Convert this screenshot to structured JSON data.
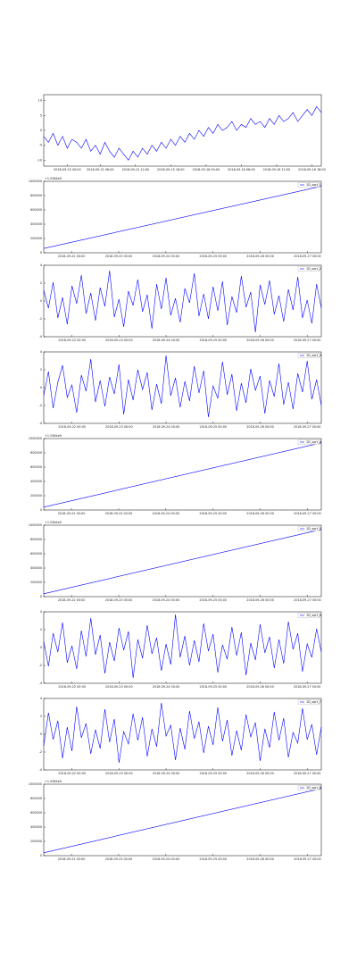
{
  "chart_data": [
    {
      "type": "line",
      "legend": false,
      "ylim": [
        -12,
        12
      ],
      "yticks": [
        -10,
        -5,
        0,
        5,
        10
      ],
      "xlim": [
        0,
        59
      ],
      "xticks": [
        {
          "value": 5,
          "label": "2018-09-15 00:00"
        },
        {
          "value": 12,
          "label": "2018-09-15 06:00"
        },
        {
          "value": 19.5,
          "label": "2018-09-15 12:00"
        },
        {
          "value": 27,
          "label": "2018-09-15 18:00"
        },
        {
          "value": 34.5,
          "label": "2018-09-16 00:00"
        },
        {
          "value": 42,
          "label": "2018-09-16 06:00"
        },
        {
          "value": 49.5,
          "label": "2018-09-16 12:00"
        },
        {
          "value": 57,
          "label": "2018-09-16 18:00"
        }
      ],
      "series": [
        {
          "color": "#0000ff",
          "values": [
            -2,
            -4,
            -1,
            -5,
            -2,
            -6,
            -3,
            -4,
            -6,
            -3,
            -7,
            -5,
            -8,
            -4,
            -7,
            -9,
            -6,
            -8,
            -10,
            -7,
            -9,
            -6,
            -8,
            -5,
            -7,
            -4,
            -6,
            -3,
            -5,
            -2,
            -4,
            -1,
            -3,
            0,
            -2,
            1,
            -1,
            2,
            0,
            1,
            3,
            0,
            2,
            1,
            4,
            2,
            3,
            1,
            4,
            2,
            5,
            3,
            4,
            6,
            3,
            5,
            7,
            5,
            8,
            6
          ]
        }
      ]
    },
    {
      "type": "line",
      "legend": true,
      "annotation": "+1.5364e9",
      "ylim": [
        0,
        1000000
      ],
      "yticks": [
        0,
        200000,
        400000,
        600000,
        800000,
        1000000
      ],
      "xlim": [
        0,
        1
      ],
      "xticks": [
        {
          "value": 0.1,
          "label": "2018-09-22 00:00"
        },
        {
          "value": 0.27,
          "label": "2018-09-23 00:00"
        },
        {
          "value": 0.44,
          "label": "2018-09-24 00:00"
        },
        {
          "value": 0.61,
          "label": "2018-09-25 00:00"
        },
        {
          "value": 0.78,
          "label": "2018-09-26 00:00"
        },
        {
          "value": 0.95,
          "label": "2018-09-27 00:00"
        }
      ],
      "series": [
        {
          "name": "1D_sqrt_1",
          "color": "#0000ff",
          "values": [
            60000,
            930000
          ]
        }
      ]
    },
    {
      "type": "line",
      "legend": true,
      "ylim": [
        -4,
        4
      ],
      "yticks": [
        -4,
        -2,
        0,
        2,
        4
      ],
      "xlim": [
        0,
        59
      ],
      "xticks": [
        {
          "value": 6,
          "label": "2018-09-22 00:00"
        },
        {
          "value": 16,
          "label": "2018-09-23 00:00"
        },
        {
          "value": 26,
          "label": "2018-09-24 00:00"
        },
        {
          "value": 36,
          "label": "2018-09-25 00:00"
        },
        {
          "value": 46,
          "label": "2018-09-26 00:00"
        },
        {
          "value": 56,
          "label": "2018-09-27 00:00"
        }
      ],
      "series": [
        {
          "name": "1D_sqrt_2",
          "color": "#0000ff",
          "values": [
            1.2,
            -0.8,
            2.1,
            -1.9,
            0.4,
            -2.6,
            1.7,
            -0.3,
            2.9,
            -1.4,
            0.9,
            -2.2,
            1.5,
            -0.6,
            3.4,
            -1.8,
            0.2,
            -2.9,
            1.1,
            -0.5,
            2.4,
            -1.2,
            0.7,
            -3.1,
            1.9,
            -0.9,
            2.6,
            -1.6,
            0.3,
            -2.4,
            1.4,
            -0.2,
            3.1,
            -1.7,
            0.8,
            -2.0,
            1.6,
            -1.1,
            2.2,
            -2.7,
            0.5,
            -1.3,
            2.8,
            -0.7,
            1.0,
            -3.5,
            1.8,
            -0.4,
            2.3,
            -1.5,
            0.6,
            -2.3,
            1.3,
            -1.0,
            2.7,
            -1.9,
            0.1,
            -2.5,
            1.9,
            -0.8
          ]
        }
      ]
    },
    {
      "type": "line",
      "legend": true,
      "ylim": [
        -4,
        4
      ],
      "yticks": [
        -4,
        -2,
        0,
        2,
        4
      ],
      "xlim": [
        0,
        59
      ],
      "xticks": [
        {
          "value": 6,
          "label": "2018-09-22 00:00"
        },
        {
          "value": 16,
          "label": "2018-09-23 00:00"
        },
        {
          "value": 26,
          "label": "2018-09-24 00:00"
        },
        {
          "value": 36,
          "label": "2018-09-25 00:00"
        },
        {
          "value": 46,
          "label": "2018-09-26 00:00"
        },
        {
          "value": 56,
          "label": "2018-09-27 00:00"
        }
      ],
      "series": [
        {
          "name": "1D_sqrt_3",
          "color": "#0000ff",
          "values": [
            -0.9,
            1.8,
            -2.3,
            0.6,
            2.5,
            -1.1,
            0.3,
            -2.8,
            1.4,
            -0.4,
            3.2,
            -1.6,
            0.8,
            -2.1,
            1.2,
            -0.7,
            2.6,
            -3.0,
            0.9,
            -1.4,
            2.0,
            -0.2,
            1.7,
            -2.5,
            0.4,
            -1.8,
            3.6,
            -0.9,
            1.1,
            -2.2,
            0.7,
            -1.5,
            2.4,
            -0.6,
            1.9,
            -3.3,
            0.2,
            -1.2,
            2.9,
            -0.8,
            1.5,
            -2.6,
            0.5,
            -1.7,
            2.1,
            -0.3,
            1.3,
            -2.9,
            0.8,
            -1.0,
            2.7,
            -1.9,
            0.6,
            -2.4,
            1.6,
            -0.5,
            3.0,
            -1.3,
            0.9,
            -2.0
          ]
        }
      ]
    },
    {
      "type": "line",
      "legend": true,
      "annotation": "+1.5364e9",
      "ylim": [
        0,
        1000000
      ],
      "yticks": [
        0,
        200000,
        400000,
        600000,
        800000,
        1000000
      ],
      "xlim": [
        0,
        1
      ],
      "xticks": [
        {
          "value": 0.1,
          "label": "2018-09-22 00:00"
        },
        {
          "value": 0.27,
          "label": "2018-09-23 00:00"
        },
        {
          "value": 0.44,
          "label": "2018-09-24 00:00"
        },
        {
          "value": 0.61,
          "label": "2018-09-25 00:00"
        },
        {
          "value": 0.78,
          "label": "2018-09-26 00:00"
        },
        {
          "value": 0.95,
          "label": "2018-09-27 00:00"
        }
      ],
      "series": [
        {
          "name": "1D_sqrt_4",
          "color": "#0000ff",
          "values": [
            40000,
            940000
          ]
        }
      ]
    },
    {
      "type": "line",
      "legend": true,
      "annotation": "+1.5364e9",
      "ylim": [
        0,
        1000000
      ],
      "yticks": [
        0,
        200000,
        400000,
        600000,
        800000,
        1000000
      ],
      "xlim": [
        0,
        1
      ],
      "xticks": [
        {
          "value": 0.1,
          "label": "2018-09-22 00:00"
        },
        {
          "value": 0.27,
          "label": "2018-09-23 00:00"
        },
        {
          "value": 0.44,
          "label": "2018-09-24 00:00"
        },
        {
          "value": 0.61,
          "label": "2018-09-25 00:00"
        },
        {
          "value": 0.78,
          "label": "2018-09-26 00:00"
        },
        {
          "value": 0.95,
          "label": "2018-09-27 00:00"
        }
      ],
      "series": [
        {
          "name": "1D_sqrt_5",
          "color": "#0000ff",
          "values": [
            40000,
            940000
          ]
        }
      ]
    },
    {
      "type": "line",
      "legend": true,
      "ylim": [
        -4,
        4
      ],
      "yticks": [
        -4,
        -2,
        0,
        2,
        4
      ],
      "xlim": [
        0,
        59
      ],
      "xticks": [
        {
          "value": 6,
          "label": "2018-09-22 00:00"
        },
        {
          "value": 16,
          "label": "2018-09-23 00:00"
        },
        {
          "value": 26,
          "label": "2018-09-24 00:00"
        },
        {
          "value": 36,
          "label": "2018-09-25 00:00"
        },
        {
          "value": 46,
          "label": "2018-09-26 00:00"
        },
        {
          "value": 56,
          "label": "2018-09-27 00:00"
        }
      ],
      "series": [
        {
          "name": "1D_sqrt_6",
          "color": "#0000ff",
          "values": [
            0.7,
            -2.1,
            1.6,
            -0.5,
            2.8,
            -1.7,
            0.2,
            -2.4,
            1.9,
            -1.0,
            3.3,
            -0.8,
            1.4,
            -2.9,
            0.6,
            -1.5,
            2.2,
            -0.3,
            1.8,
            -3.4,
            0.9,
            -1.2,
            2.5,
            -0.7,
            1.1,
            -2.6,
            0.4,
            -1.9,
            3.7,
            -1.1,
            1.3,
            -2.0,
            0.8,
            -1.6,
            2.7,
            -0.4,
            1.5,
            -2.8,
            0.3,
            -1.3,
            2.3,
            -0.9,
            1.7,
            -3.1,
            0.5,
            -1.4,
            2.6,
            -0.6,
            1.2,
            -2.3,
            0.9,
            -1.8,
            2.9,
            -0.2,
            1.6,
            -2.7,
            0.4,
            -1.1,
            2.1,
            -0.5
          ]
        }
      ]
    },
    {
      "type": "line",
      "legend": true,
      "ylim": [
        -4,
        4
      ],
      "yticks": [
        -4,
        -2,
        0,
        2,
        4
      ],
      "xlim": [
        0,
        59
      ],
      "xticks": [
        {
          "value": 6,
          "label": "2018-09-22 00:00"
        },
        {
          "value": 16,
          "label": "2018-09-23 00:00"
        },
        {
          "value": 26,
          "label": "2018-09-24 00:00"
        },
        {
          "value": 36,
          "label": "2018-09-25 00:00"
        },
        {
          "value": 46,
          "label": "2018-09-26 00:00"
        },
        {
          "value": 56,
          "label": "2018-09-27 00:00"
        }
      ],
      "series": [
        {
          "name": "1D_sqrt_7",
          "color": "#0000ff",
          "values": [
            -1.3,
            2.4,
            -0.6,
            1.5,
            -2.7,
            0.8,
            -1.9,
            3.1,
            -0.4,
            1.2,
            -2.2,
            0.5,
            -1.6,
            2.8,
            -0.9,
            1.7,
            -3.2,
            0.3,
            -1.1,
            2.3,
            -0.7,
            1.9,
            -2.5,
            0.6,
            -1.4,
            3.5,
            -0.2,
            1.0,
            -2.9,
            0.7,
            -1.7,
            2.6,
            -0.5,
            1.4,
            -2.1,
            0.9,
            -1.2,
            3.0,
            -0.8,
            1.6,
            -2.4,
            0.4,
            -1.8,
            2.2,
            -0.3,
            1.3,
            -3.0,
            0.6,
            -1.5,
            2.5,
            -0.7,
            1.8,
            -2.6,
            0.2,
            -1.0,
            2.9,
            -0.6,
            1.1,
            -2.3,
            0.8
          ]
        }
      ]
    },
    {
      "type": "line",
      "legend": true,
      "annotation": "+1.5364e9",
      "ylim": [
        0,
        1000000
      ],
      "yticks": [
        0,
        200000,
        400000,
        600000,
        800000,
        1000000
      ],
      "xlim": [
        0,
        1
      ],
      "xticks": [
        {
          "value": 0.1,
          "label": "2018-09-22 00:00"
        },
        {
          "value": 0.27,
          "label": "2018-09-23 00:00"
        },
        {
          "value": 0.44,
          "label": "2018-09-24 00:00"
        },
        {
          "value": 0.61,
          "label": "2018-09-25 00:00"
        },
        {
          "value": 0.78,
          "label": "2018-09-26 00:00"
        },
        {
          "value": 0.95,
          "label": "2018-09-27 00:00"
        }
      ],
      "series": [
        {
          "name": "1D_sqrt_8",
          "color": "#0000ff",
          "values": [
            40000,
            940000
          ]
        }
      ]
    }
  ]
}
